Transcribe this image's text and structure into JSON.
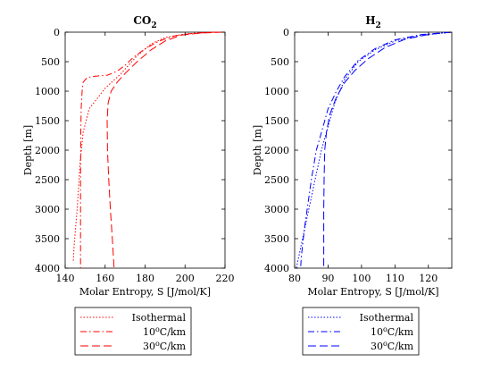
{
  "chart_data": [
    {
      "type": "line",
      "title": "CO",
      "title_sub": "2",
      "xlabel": "Molar Entropy, S [J/mol/K]",
      "ylabel": "Depth [m]",
      "xlim": [
        140,
        220
      ],
      "ylim": [
        0,
        4000
      ],
      "y_reversed": true,
      "xticks": [
        140,
        160,
        180,
        200,
        220
      ],
      "yticks": [
        0,
        500,
        1000,
        1500,
        2000,
        2500,
        3000,
        3500,
        4000
      ],
      "grid": false,
      "legend_position": "below",
      "series": [
        {
          "name": "Isothermal",
          "color": "#ff0000",
          "dash": "1.5,2",
          "points": [
            [
              213,
              0
            ],
            [
              200,
              30
            ],
            [
              190,
              90
            ],
            [
              183,
              200
            ],
            [
              176,
              400
            ],
            [
              168,
              700
            ],
            [
              160,
              950
            ],
            [
              152,
              1300
            ],
            [
              149,
              1700
            ],
            [
              147.5,
              2200
            ],
            [
              146,
              3000
            ],
            [
              144.5,
              3600
            ],
            [
              144,
              3900
            ]
          ]
        },
        {
          "name": "10°C/km",
          "color": "#ff0000",
          "dash": "7,3,1.5,3",
          "points": [
            [
              216,
              0
            ],
            [
              205,
              15
            ],
            [
              195,
              60
            ],
            [
              187,
              150
            ],
            [
              180,
              280
            ],
            [
              174,
              430
            ],
            [
              170,
              560
            ],
            [
              166,
              660
            ],
            [
              161,
              730
            ],
            [
              155,
              745
            ],
            [
              151,
              770
            ],
            [
              149,
              850
            ],
            [
              148.5,
              1000
            ],
            [
              148,
              1300
            ],
            [
              147.8,
              1700
            ],
            [
              147.7,
              2500
            ],
            [
              147.7,
              4000
            ]
          ]
        },
        {
          "name": "30°C/km",
          "color": "#ff0000",
          "dash": "9,4",
          "points": [
            [
              219,
              0
            ],
            [
              208,
              15
            ],
            [
              198,
              50
            ],
            [
              190,
              150
            ],
            [
              183,
              300
            ],
            [
              176,
              500
            ],
            [
              170,
              700
            ],
            [
              166,
              850
            ],
            [
              163,
              1000
            ],
            [
              161.5,
              1200
            ],
            [
              161,
              1500
            ],
            [
              161.2,
              2000
            ],
            [
              161.8,
              2500
            ],
            [
              162.6,
              3000
            ],
            [
              163.6,
              3500
            ],
            [
              164.5,
              4000
            ]
          ]
        }
      ]
    },
    {
      "type": "line",
      "title": "H",
      "title_sub": "2",
      "xlabel": "Molar Entropy, S [J/mol/K]",
      "ylabel": "Depth [m]",
      "xlim": [
        80,
        127
      ],
      "ylim": [
        0,
        4000
      ],
      "y_reversed": true,
      "xticks": [
        80,
        90,
        100,
        110,
        120
      ],
      "yticks": [
        0,
        500,
        1000,
        1500,
        2000,
        2500,
        3000,
        3500,
        4000
      ],
      "grid": false,
      "legend_position": "below",
      "series": [
        {
          "name": "Isothermal",
          "color": "#0000ff",
          "dash": "1.5,2",
          "points": [
            [
              127,
              0
            ],
            [
              118,
              50
            ],
            [
              110,
              150
            ],
            [
              104,
              300
            ],
            [
              99,
              500
            ],
            [
              95,
              800
            ],
            [
              92,
              1200
            ],
            [
              90,
              1600
            ],
            [
              88,
              2000
            ],
            [
              86.5,
              2400
            ],
            [
              85,
              2800
            ],
            [
              83.5,
              3200
            ],
            [
              82,
              3600
            ],
            [
              80.5,
              4000
            ]
          ]
        },
        {
          "name": "10°C/km",
          "color": "#0000ff",
          "dash": "7,3,1.5,3",
          "points": [
            [
              127,
              0
            ],
            [
              118,
              40
            ],
            [
              110,
              130
            ],
            [
              104,
              280
            ],
            [
              99,
              480
            ],
            [
              95,
              750
            ],
            [
              92.5,
              1000
            ],
            [
              90,
              1300
            ],
            [
              88,
              1700
            ],
            [
              86.5,
              2000
            ],
            [
              85,
              2500
            ],
            [
              84,
              2900
            ],
            [
              83,
              3300
            ],
            [
              82,
              3800
            ],
            [
              81.8,
              4000
            ]
          ]
        },
        {
          "name": "30°C/km",
          "color": "#0000ff",
          "dash": "9,4",
          "points": [
            [
              127,
              0
            ],
            [
              120,
              40
            ],
            [
              113,
              120
            ],
            [
              107,
              260
            ],
            [
              102,
              450
            ],
            [
              98,
              650
            ],
            [
              95,
              850
            ],
            [
              92.5,
              1100
            ],
            [
              90.5,
              1400
            ],
            [
              89.5,
              1700
            ],
            [
              89,
              2000
            ],
            [
              88.8,
              2500
            ],
            [
              88.7,
              3000
            ],
            [
              88.7,
              3500
            ],
            [
              88.7,
              4000
            ]
          ]
        }
      ]
    }
  ],
  "legend_labels": [
    {
      "text": "Isothermal"
    },
    {
      "prefix": "10",
      "sup": "o",
      "suffix": "C/km"
    },
    {
      "prefix": "30",
      "sup": "o",
      "suffix": "C/km"
    }
  ]
}
